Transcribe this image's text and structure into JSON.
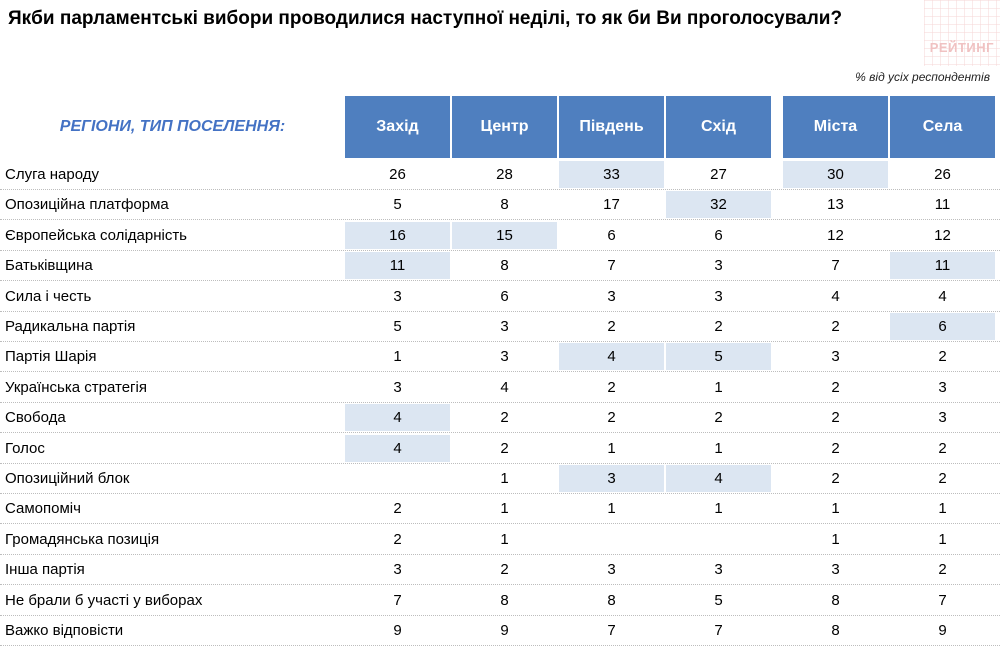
{
  "title": "Якби парламентські вибори проводилися наступної неділі, то як би Ви проголосували?",
  "logo_text": "РЕЙТИНГ",
  "note": "% від усіх респондентів",
  "region_label": "РЕГІОНИ, ТИП ПОСЕЛЕННЯ:",
  "colors": {
    "header": "#4f7fbf",
    "highlight": "#dce6f2",
    "label": "#4472c4"
  },
  "chart_data": {
    "type": "table",
    "columns": [
      "Захід",
      "Центр",
      "Південь",
      "Схід",
      "Міста",
      "Села"
    ],
    "rows": [
      {
        "label": "Слуга народу",
        "values": [
          "26",
          "28",
          "33",
          "27",
          "30",
          "26"
        ],
        "highlight": [
          2,
          4
        ]
      },
      {
        "label": "Опозиційна платформа",
        "values": [
          "5",
          "8",
          "17",
          "32",
          "13",
          "11"
        ],
        "highlight": [
          3
        ]
      },
      {
        "label": "Європейська солідарність",
        "values": [
          "16",
          "15",
          "6",
          "6",
          "12",
          "12"
        ],
        "highlight": [
          0,
          1
        ]
      },
      {
        "label": "Батьківщина",
        "values": [
          "11",
          "8",
          "7",
          "3",
          "7",
          "11"
        ],
        "highlight": [
          0,
          5
        ]
      },
      {
        "label": "Сила і честь",
        "values": [
          "3",
          "6",
          "3",
          "3",
          "4",
          "4"
        ],
        "highlight": []
      },
      {
        "label": "Радикальна партія",
        "values": [
          "5",
          "3",
          "2",
          "2",
          "2",
          "6"
        ],
        "highlight": [
          5
        ]
      },
      {
        "label": "Партія Шарія",
        "values": [
          "1",
          "3",
          "4",
          "5",
          "3",
          "2"
        ],
        "highlight": [
          2,
          3
        ]
      },
      {
        "label": "Українська стратегія",
        "values": [
          "3",
          "4",
          "2",
          "1",
          "2",
          "3"
        ],
        "highlight": []
      },
      {
        "label": "Свобода",
        "values": [
          "4",
          "2",
          "2",
          "2",
          "2",
          "3"
        ],
        "highlight": [
          0
        ]
      },
      {
        "label": "Голос",
        "values": [
          "4",
          "2",
          "1",
          "1",
          "2",
          "2"
        ],
        "highlight": [
          0
        ]
      },
      {
        "label": "Опозиційний блок",
        "values": [
          "",
          "1",
          "3",
          "4",
          "2",
          "2"
        ],
        "highlight": [
          2,
          3
        ]
      },
      {
        "label": "Самопоміч",
        "values": [
          "2",
          "1",
          "1",
          "1",
          "1",
          "1"
        ],
        "highlight": []
      },
      {
        "label": "Громадянська позиція",
        "values": [
          "2",
          "1",
          "",
          "",
          "1",
          "1"
        ],
        "highlight": []
      },
      {
        "label": "Інша партія",
        "values": [
          "3",
          "2",
          "3",
          "3",
          "3",
          "2"
        ],
        "highlight": []
      },
      {
        "label": "Не брали б участі у виборах",
        "values": [
          "7",
          "8",
          "8",
          "5",
          "8",
          "7"
        ],
        "highlight": []
      },
      {
        "label": "Важко відповісти",
        "values": [
          "9",
          "9",
          "7",
          "7",
          "8",
          "9"
        ],
        "highlight": []
      }
    ]
  }
}
